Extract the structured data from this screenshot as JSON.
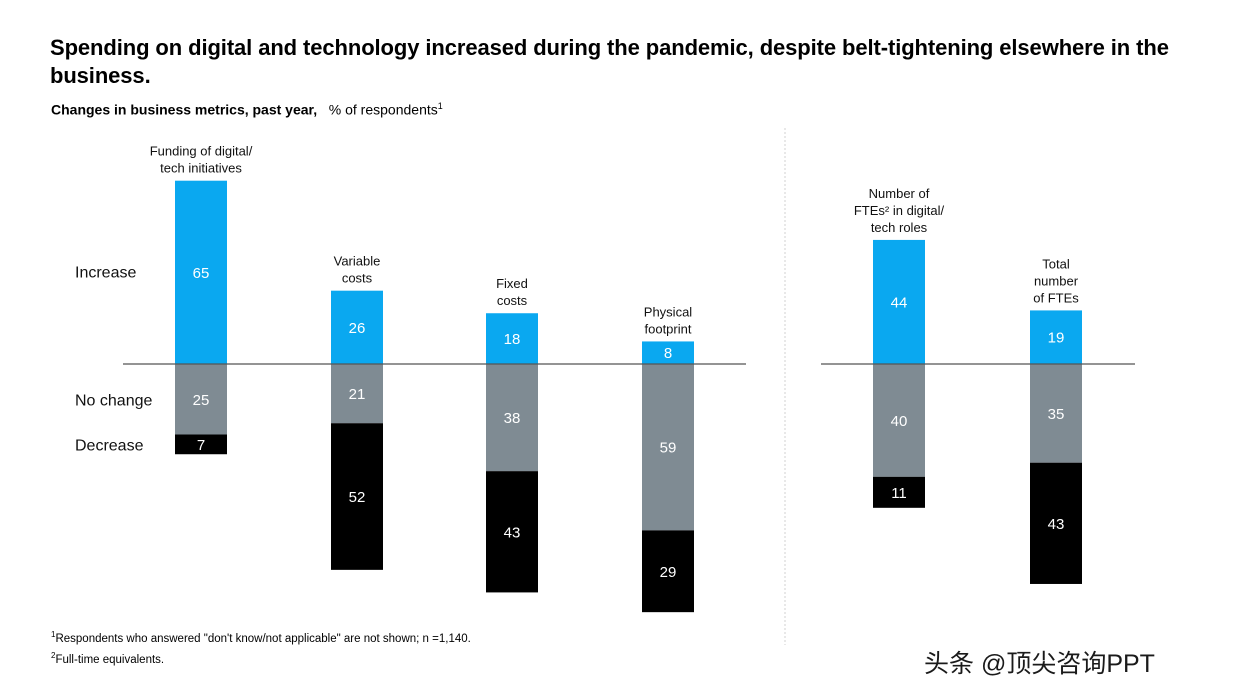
{
  "title": "Spending on digital and technology increased during the pandemic, despite belt-tightening elsewhere in the business.",
  "subtitle": {
    "main": "Changes in business metrics, past year,",
    "unit": "% of respondents",
    "marker": "1"
  },
  "colors": {
    "increase": "#0aa8f0",
    "no_change": "#7f8b93",
    "decrease": "#000000",
    "baseline": "#555555",
    "divider": "#d0d0d0"
  },
  "chart_data": {
    "type": "bar",
    "title": "Changes in business metrics, past year",
    "unit": "% of respondents",
    "row_labels": [
      "Increase",
      "No change",
      "Decrease"
    ],
    "panels": [
      {
        "categories": [
          {
            "label": [
              "Funding of digital/",
              "tech initiatives"
            ],
            "increase": 65,
            "no_change": 25,
            "decrease": 7
          },
          {
            "label": [
              "Variable",
              "costs"
            ],
            "increase": 26,
            "no_change": 21,
            "decrease": 52
          },
          {
            "label": [
              "Fixed",
              "costs"
            ],
            "increase": 18,
            "no_change": 38,
            "decrease": 43
          },
          {
            "label": [
              "Physical",
              "footprint"
            ],
            "increase": 8,
            "no_change": 59,
            "decrease": 29
          }
        ]
      },
      {
        "categories": [
          {
            "label": [
              "Number of",
              "FTEs² in digital/",
              "tech roles"
            ],
            "increase": 44,
            "no_change": 40,
            "decrease": 11
          },
          {
            "label": [
              "Total",
              "number",
              "of FTEs"
            ],
            "increase": 19,
            "no_change": 35,
            "decrease": 43
          }
        ]
      }
    ]
  },
  "footnotes": {
    "fn1": {
      "marker": "1",
      "text": "Respondents who answered \"don't know/not applicable\" are not shown; n =1,140."
    },
    "fn2": {
      "marker": "2",
      "text": "Full-time equivalents."
    }
  },
  "watermark": "头条 @顶尖咨询PPT"
}
